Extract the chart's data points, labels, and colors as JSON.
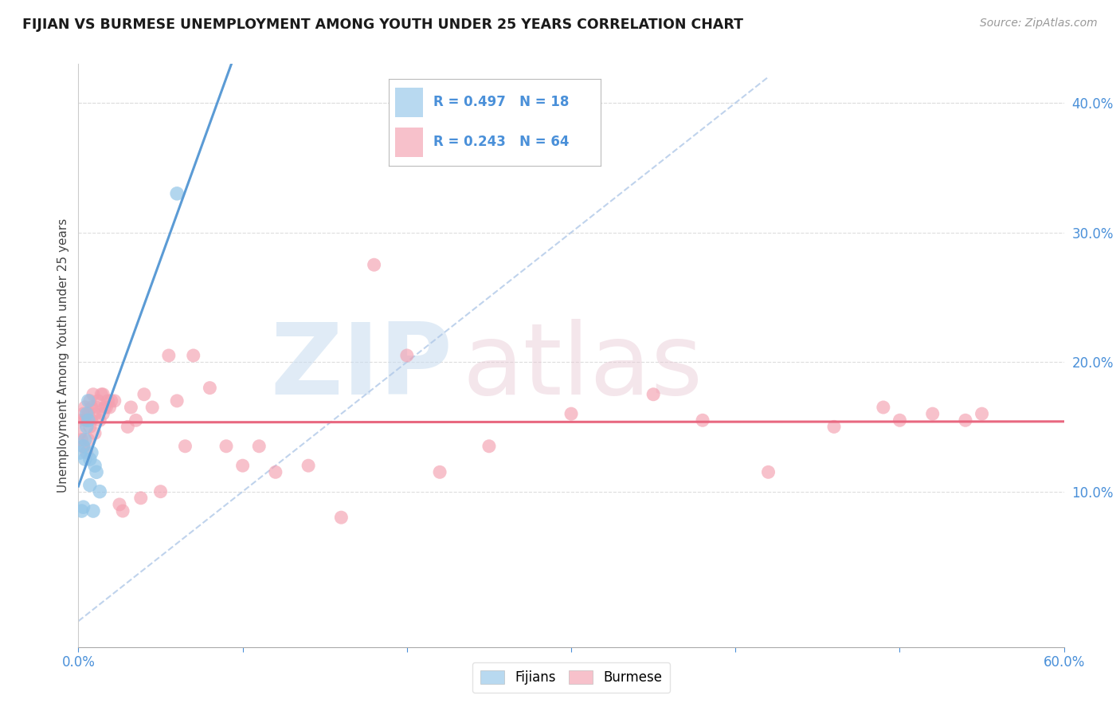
{
  "title": "FIJIAN VS BURMESE UNEMPLOYMENT AMONG YOUTH UNDER 25 YEARS CORRELATION CHART",
  "source": "Source: ZipAtlas.com",
  "ylabel": "Unemployment Among Youth under 25 years",
  "xlim": [
    0.0,
    0.6
  ],
  "ylim": [
    -0.02,
    0.43
  ],
  "xticks": [
    0.0,
    0.1,
    0.2,
    0.3,
    0.4,
    0.5,
    0.6
  ],
  "xticklabels": [
    "0.0%",
    "",
    "",
    "",
    "",
    "",
    "60.0%"
  ],
  "yticks_right": [
    0.1,
    0.2,
    0.3,
    0.4
  ],
  "ytick_right_labels": [
    "10.0%",
    "20.0%",
    "30.0%",
    "40.0%"
  ],
  "legend_blue_r": "R = 0.497",
  "legend_blue_n": "N = 18",
  "legend_pink_r": "R = 0.243",
  "legend_pink_n": "N = 64",
  "legend_label_fijians": "Fijians",
  "legend_label_burmese": "Burmese",
  "color_blue": "#92C5E8",
  "color_pink": "#F4A0B0",
  "color_text_blue": "#4A90D9",
  "color_trend_blue": "#5B9BD5",
  "color_trend_pink": "#E86880",
  "background_color": "#FFFFFF",
  "grid_color": "#CCCCCC",
  "fijian_x": [
    0.001,
    0.002,
    0.003,
    0.003,
    0.004,
    0.004,
    0.005,
    0.005,
    0.006,
    0.006,
    0.007,
    0.007,
    0.008,
    0.009,
    0.01,
    0.011,
    0.013,
    0.06
  ],
  "fijian_y": [
    0.13,
    0.085,
    0.088,
    0.135,
    0.125,
    0.14,
    0.15,
    0.16,
    0.155,
    0.17,
    0.125,
    0.105,
    0.13,
    0.085,
    0.12,
    0.115,
    0.1,
    0.33
  ],
  "burmese_x": [
    0.001,
    0.002,
    0.002,
    0.003,
    0.003,
    0.004,
    0.004,
    0.005,
    0.005,
    0.006,
    0.006,
    0.007,
    0.007,
    0.008,
    0.008,
    0.009,
    0.01,
    0.01,
    0.011,
    0.012,
    0.013,
    0.014,
    0.015,
    0.015,
    0.016,
    0.017,
    0.018,
    0.019,
    0.02,
    0.022,
    0.025,
    0.027,
    0.03,
    0.032,
    0.035,
    0.038,
    0.04,
    0.045,
    0.05,
    0.055,
    0.06,
    0.065,
    0.07,
    0.08,
    0.09,
    0.1,
    0.11,
    0.12,
    0.14,
    0.16,
    0.18,
    0.2,
    0.22,
    0.25,
    0.3,
    0.35,
    0.38,
    0.42,
    0.46,
    0.49,
    0.5,
    0.52,
    0.54,
    0.55
  ],
  "burmese_y": [
    0.145,
    0.14,
    0.155,
    0.135,
    0.16,
    0.155,
    0.165,
    0.13,
    0.155,
    0.14,
    0.16,
    0.15,
    0.17,
    0.155,
    0.165,
    0.175,
    0.16,
    0.145,
    0.165,
    0.17,
    0.155,
    0.175,
    0.16,
    0.175,
    0.165,
    0.165,
    0.17,
    0.165,
    0.17,
    0.17,
    0.09,
    0.085,
    0.15,
    0.165,
    0.155,
    0.095,
    0.175,
    0.165,
    0.1,
    0.205,
    0.17,
    0.135,
    0.205,
    0.18,
    0.135,
    0.12,
    0.135,
    0.115,
    0.12,
    0.08,
    0.275,
    0.205,
    0.115,
    0.135,
    0.16,
    0.175,
    0.155,
    0.115,
    0.15,
    0.165,
    0.155,
    0.16,
    0.155,
    0.16
  ]
}
